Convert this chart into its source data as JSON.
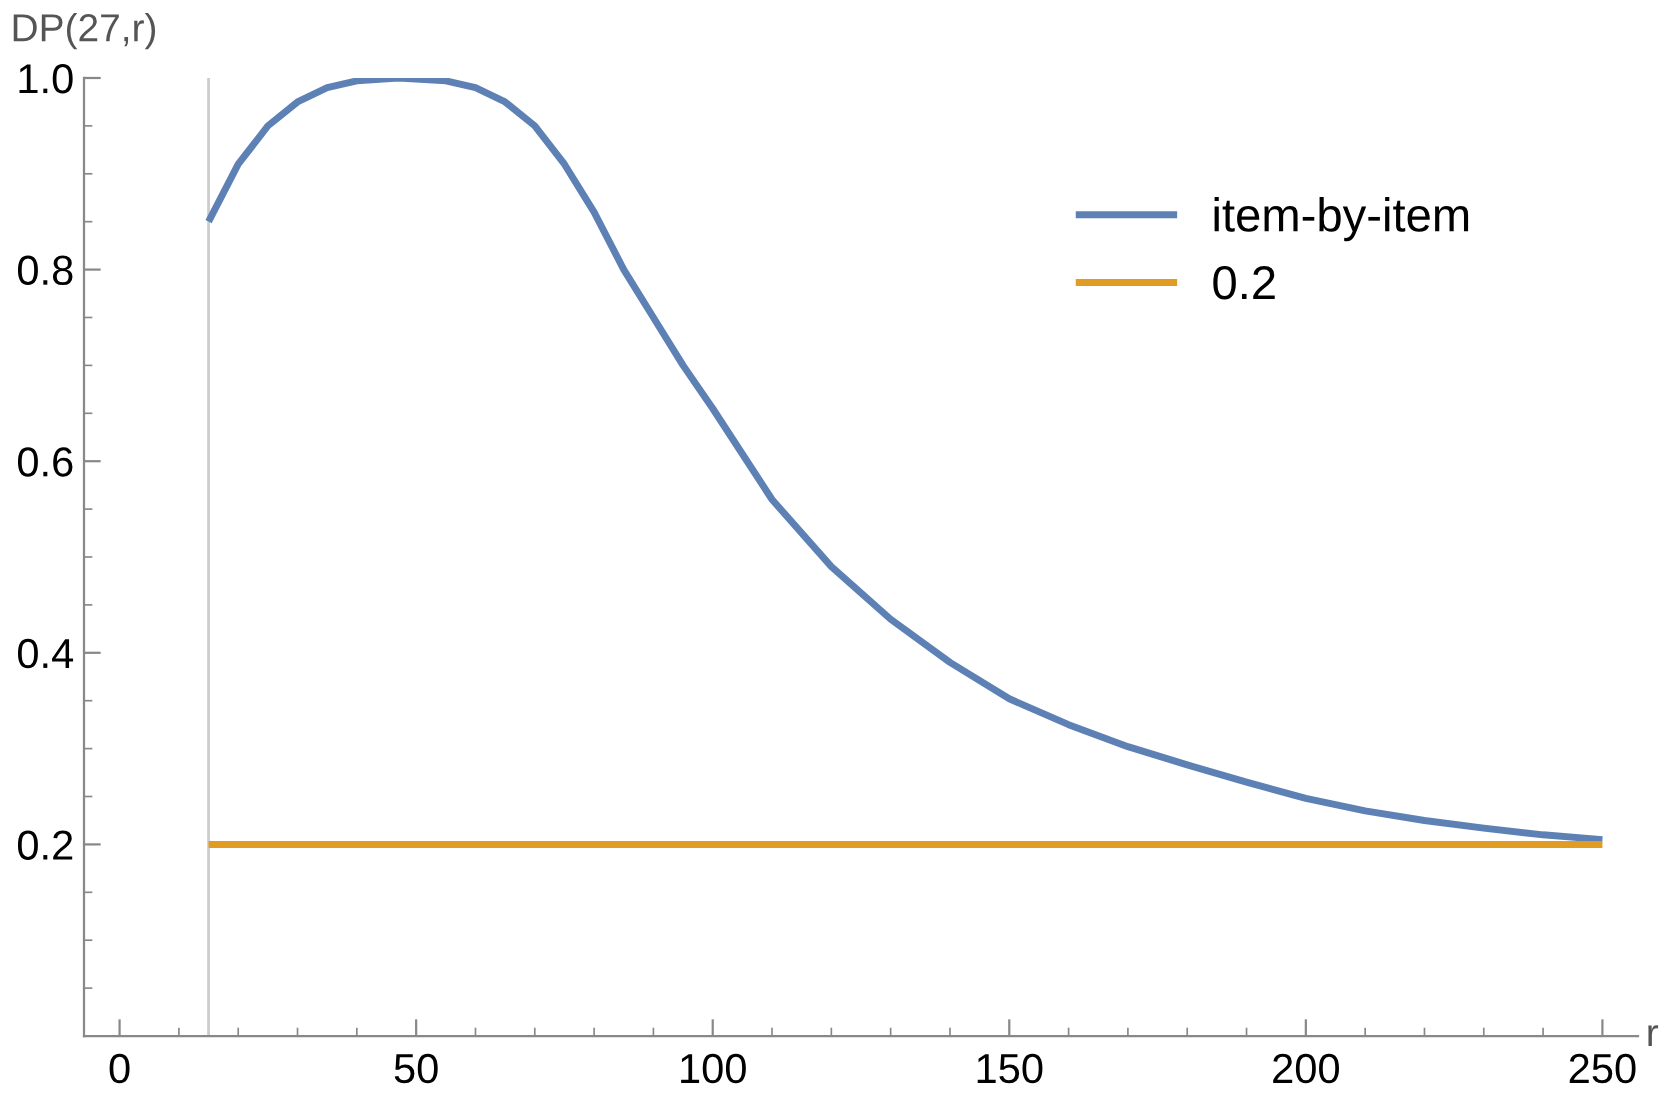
{
  "chart_data": {
    "type": "line",
    "xlabel": "r",
    "ylabel": "DP(27,r)",
    "series": [
      {
        "name": "item-by-item",
        "color": "#5e81b5",
        "x": [
          15,
          20,
          25,
          30,
          35,
          40,
          47,
          55,
          60,
          65,
          70,
          75,
          80,
          85,
          90,
          95,
          100,
          110,
          120,
          130,
          140,
          150,
          160,
          170,
          180,
          190,
          200,
          210,
          220,
          230,
          240,
          250
        ],
        "values": [
          0.85,
          0.91,
          0.95,
          0.975,
          0.99,
          0.997,
          1.0,
          0.997,
          0.99,
          0.975,
          0.95,
          0.91,
          0.86,
          0.8,
          0.75,
          0.7,
          0.655,
          0.56,
          0.49,
          0.435,
          0.39,
          0.352,
          0.325,
          0.302,
          0.283,
          0.265,
          0.248,
          0.235,
          0.225,
          0.217,
          0.21,
          0.205
        ]
      },
      {
        "name": "0.2",
        "color": "#e19c24",
        "x": [
          15,
          250
        ],
        "values": [
          0.2,
          0.2
        ]
      }
    ],
    "ref_lines": [
      {
        "axis": "x",
        "value": 15,
        "color": "#cccccc"
      }
    ],
    "xlim": [
      -6,
      256
    ],
    "ylim": [
      0,
      1.0
    ],
    "xticks": [
      0,
      50,
      100,
      150,
      200,
      250
    ],
    "yticks": [
      0.2,
      0.4,
      0.6,
      0.8,
      {
        "value": 1.0,
        "label": "1.0"
      }
    ],
    "grid": false,
    "legend": "top right",
    "line_style": "solid",
    "marker": "none"
  }
}
